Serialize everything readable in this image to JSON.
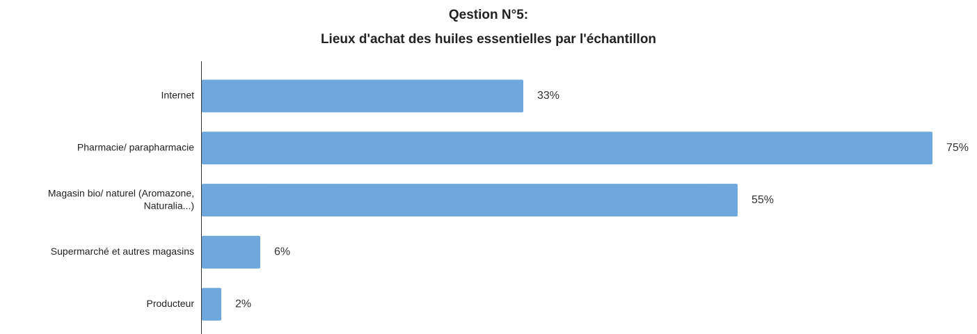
{
  "chart_data": {
    "type": "bar",
    "orientation": "horizontal",
    "title": [
      "Qestion N°5:",
      "Lieux d'achat des huiles essentielles par l'échantillon"
    ],
    "categories": [
      "Internet",
      "Pharmacie/ parapharmacie",
      "Magasin bio/ naturel (Aromazone, Naturalia...)",
      "Supermarché et autres magasins",
      "Producteur"
    ],
    "values": [
      33,
      75,
      55,
      6,
      2
    ],
    "value_labels": [
      "33%",
      "75%",
      "55%",
      "6%",
      "2%"
    ],
    "color": "#6fa8dc"
  }
}
